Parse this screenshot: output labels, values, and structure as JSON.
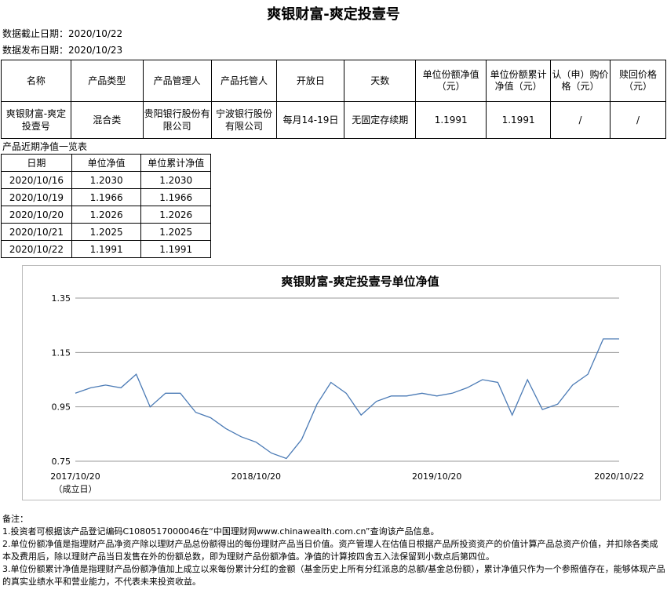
{
  "title": "爽银财富-爽定投壹号",
  "meta": {
    "cutoff_label": "数据截止日期：",
    "cutoff_date": "2020/10/22",
    "release_label": "数据发布日期：",
    "release_date": "2020/10/23"
  },
  "main_table": {
    "headers": [
      "名称",
      "产品类型",
      "产品管理人",
      "产品托管人",
      "开放日",
      "天数",
      "单位份额净值（元）",
      "单位份额累计净值（元）",
      "认（申）购价格（元）",
      "赎回价格（元）"
    ],
    "row": [
      "爽银财富-爽定投壹号",
      "混合类",
      "贵阳银行股份有限公司",
      "宁波银行股份有限公司",
      "每月14-19日",
      "无固定存续期",
      "1.1991",
      "1.1991",
      "/",
      "/"
    ]
  },
  "nav_section": {
    "title": "产品近期净值一览表",
    "headers": [
      "日期",
      "单位净值",
      "单位累计净值"
    ],
    "rows": [
      [
        "2020/10/16",
        "1.2030",
        "1.2030"
      ],
      [
        "2020/10/19",
        "1.1966",
        "1.1966"
      ],
      [
        "2020/10/20",
        "1.2026",
        "1.2026"
      ],
      [
        "2020/10/21",
        "1.2025",
        "1.2025"
      ],
      [
        "2020/10/22",
        "1.1991",
        "1.1991"
      ]
    ]
  },
  "chart_data": {
    "type": "line",
    "title": "爽银财富-爽定投壹号单位净值",
    "ylim": [
      0.75,
      1.35
    ],
    "yticks": [
      "1.35",
      "1.15",
      "0.95",
      "0.75"
    ],
    "xticks": [
      "2017/10/20",
      "2018/10/20",
      "2019/10/20",
      "2020/10/22"
    ],
    "xtick_note": "（成立日）",
    "grid": true,
    "line_color": "#4a7ab5",
    "x": [
      "2017/10/20",
      "2017/11/20",
      "2017/12/20",
      "2018/01/20",
      "2018/02/20",
      "2018/03/20",
      "2018/04/20",
      "2018/05/20",
      "2018/06/20",
      "2018/07/20",
      "2018/08/20",
      "2018/09/20",
      "2018/10/20",
      "2018/11/20",
      "2018/12/20",
      "2019/01/20",
      "2019/02/20",
      "2019/03/20",
      "2019/04/20",
      "2019/05/20",
      "2019/06/20",
      "2019/07/20",
      "2019/08/20",
      "2019/09/20",
      "2019/10/20",
      "2019/11/20",
      "2019/12/20",
      "2020/01/20",
      "2020/02/20",
      "2020/03/20",
      "2020/04/20",
      "2020/05/20",
      "2020/06/20",
      "2020/07/20",
      "2020/08/20",
      "2020/09/20",
      "2020/10/22"
    ],
    "values": [
      1.0,
      1.02,
      1.03,
      1.02,
      1.07,
      0.95,
      1.0,
      1.0,
      0.93,
      0.91,
      0.87,
      0.84,
      0.82,
      0.78,
      0.76,
      0.83,
      0.96,
      1.04,
      1.0,
      0.92,
      0.97,
      0.99,
      0.99,
      1.0,
      0.99,
      1.0,
      1.02,
      1.05,
      1.04,
      0.92,
      1.05,
      0.94,
      0.96,
      1.03,
      1.07,
      1.2,
      1.2
    ]
  },
  "notes": {
    "heading": "备注：",
    "lines": [
      "1.投资者可根据该产品登记编码C1080517000046在“中国理财网www.chinawealth.com.cn”查询该产品信息。",
      "2.单位份额净值是指理财产品净资产除以理财产品总份额得出的每份理财产品当日价值。资产管理人在估值日根据产品所投资资产的价值计算产品总资产价值，并扣除各类成本及费用后，除以理财产品当日发售在外的份额总数，即为理财产品份额净值。净值的计算按四舍五入法保留到小数点后第四位。",
      "3.单位份额累计净值是指理财产品份额净值加上成立以来每份累计分红的金额（基金历史上所有分红派息的总额/基金总份额），累计净值只作为一个参照值存在，能够体现产品的真实业绩水平和营业能力，不代表未来投资收益。"
    ]
  }
}
